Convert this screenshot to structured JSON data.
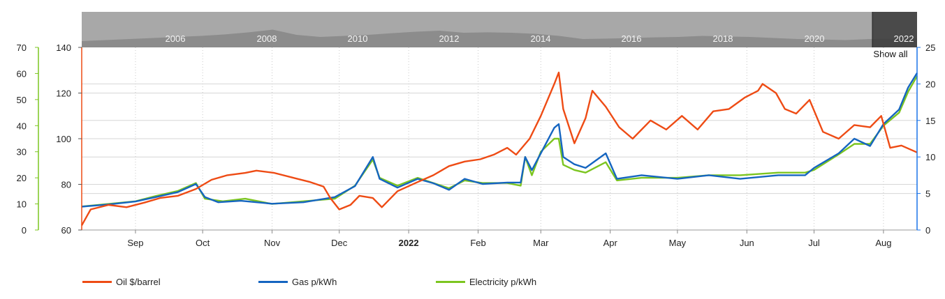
{
  "colors": {
    "oil": "#ee4b14",
    "gas": "#1565c0",
    "electricity": "#7cc520",
    "grid": "#d6d6d6",
    "navigator_bg": "#a8a8a8",
    "navigator_fill": "#8c8c8c"
  },
  "navigator": {
    "years": [
      "2006",
      "2008",
      "2010",
      "2012",
      "2014",
      "2016",
      "2018",
      "2020",
      "2022"
    ],
    "show_all_label": "Show all"
  },
  "chart_data": {
    "type": "line",
    "x_axis": {
      "ticks": [
        {
          "label": "Sep",
          "x": "2021-09-01"
        },
        {
          "label": "Oct",
          "x": "2021-10-01"
        },
        {
          "label": "Nov",
          "x": "2021-11-01"
        },
        {
          "label": "Dec",
          "x": "2021-12-01"
        },
        {
          "label": "2022",
          "x": "2022-01-01",
          "bold": true
        },
        {
          "label": "Feb",
          "x": "2022-02-01"
        },
        {
          "label": "Mar",
          "x": "2022-03-01"
        },
        {
          "label": "Apr",
          "x": "2022-04-01"
        },
        {
          "label": "May",
          "x": "2022-05-01"
        },
        {
          "label": "Jun",
          "x": "2022-06-01"
        },
        {
          "label": "Jul",
          "x": "2022-07-01"
        },
        {
          "label": "Aug",
          "x": "2022-08-01"
        }
      ],
      "range": [
        "2021-08-08",
        "2022-08-16"
      ]
    },
    "y_axes": {
      "oil": {
        "ticks": [
          "60",
          "80",
          "100",
          "120",
          "140"
        ],
        "range": [
          60,
          140
        ]
      },
      "electricity": {
        "ticks": [
          "0",
          "10",
          "20",
          "30",
          "40",
          "50",
          "60",
          "70"
        ],
        "range": [
          0,
          70
        ]
      },
      "gas": {
        "ticks": [
          "0",
          "5",
          "10",
          "15",
          "20",
          "25"
        ],
        "range": [
          0,
          25
        ]
      }
    },
    "grid": true,
    "series": [
      {
        "name": "Oil $/barrel",
        "key": "oil",
        "axis": "oil",
        "points": [
          [
            "2021-08-08",
            62
          ],
          [
            "2021-08-12",
            69
          ],
          [
            "2021-08-20",
            71
          ],
          [
            "2021-08-28",
            70
          ],
          [
            "2021-09-05",
            72
          ],
          [
            "2021-09-12",
            74
          ],
          [
            "2021-09-20",
            75
          ],
          [
            "2021-09-28",
            78
          ],
          [
            "2021-10-05",
            82
          ],
          [
            "2021-10-12",
            84
          ],
          [
            "2021-10-20",
            85
          ],
          [
            "2021-10-25",
            86
          ],
          [
            "2021-11-02",
            85
          ],
          [
            "2021-11-10",
            83
          ],
          [
            "2021-11-18",
            81
          ],
          [
            "2021-11-24",
            79
          ],
          [
            "2021-11-27",
            74
          ],
          [
            "2021-12-01",
            69
          ],
          [
            "2021-12-06",
            71
          ],
          [
            "2021-12-10",
            75
          ],
          [
            "2021-12-16",
            74
          ],
          [
            "2021-12-20",
            70
          ],
          [
            "2021-12-27",
            77
          ],
          [
            "2022-01-05",
            81
          ],
          [
            "2022-01-12",
            84
          ],
          [
            "2022-01-19",
            88
          ],
          [
            "2022-01-26",
            90
          ],
          [
            "2022-02-02",
            91
          ],
          [
            "2022-02-08",
            93
          ],
          [
            "2022-02-14",
            96
          ],
          [
            "2022-02-18",
            93
          ],
          [
            "2022-02-24",
            100
          ],
          [
            "2022-03-01",
            110
          ],
          [
            "2022-03-07",
            124
          ],
          [
            "2022-03-09",
            129
          ],
          [
            "2022-03-11",
            113
          ],
          [
            "2022-03-16",
            98
          ],
          [
            "2022-03-21",
            109
          ],
          [
            "2022-03-24",
            121
          ],
          [
            "2022-03-30",
            114
          ],
          [
            "2022-04-05",
            105
          ],
          [
            "2022-04-11",
            100
          ],
          [
            "2022-04-19",
            108
          ],
          [
            "2022-04-26",
            104
          ],
          [
            "2022-05-03",
            110
          ],
          [
            "2022-05-10",
            104
          ],
          [
            "2022-05-17",
            112
          ],
          [
            "2022-05-24",
            113
          ],
          [
            "2022-05-31",
            118
          ],
          [
            "2022-06-06",
            121
          ],
          [
            "2022-06-08",
            124
          ],
          [
            "2022-06-14",
            120
          ],
          [
            "2022-06-18",
            113
          ],
          [
            "2022-06-23",
            111
          ],
          [
            "2022-06-29",
            117
          ],
          [
            "2022-07-05",
            103
          ],
          [
            "2022-07-12",
            100
          ],
          [
            "2022-07-19",
            106
          ],
          [
            "2022-07-26",
            105
          ],
          [
            "2022-07-31",
            110
          ],
          [
            "2022-08-04",
            96
          ],
          [
            "2022-08-09",
            97
          ],
          [
            "2022-08-16",
            94
          ]
        ]
      },
      {
        "name": "Gas p/kWh",
        "key": "gas",
        "axis": "gas",
        "points": [
          [
            "2021-08-08",
            3.2
          ],
          [
            "2021-08-20",
            3.5
          ],
          [
            "2021-09-01",
            3.9
          ],
          [
            "2021-09-10",
            4.5
          ],
          [
            "2021-09-20",
            5.2
          ],
          [
            "2021-09-28",
            6.3
          ],
          [
            "2021-10-02",
            4.5
          ],
          [
            "2021-10-08",
            3.8
          ],
          [
            "2021-10-18",
            4.0
          ],
          [
            "2021-11-01",
            3.6
          ],
          [
            "2021-11-15",
            3.8
          ],
          [
            "2021-11-29",
            4.5
          ],
          [
            "2021-12-08",
            6.0
          ],
          [
            "2021-12-16",
            10.0
          ],
          [
            "2021-12-19",
            7.0
          ],
          [
            "2021-12-27",
            5.8
          ],
          [
            "2022-01-05",
            7.0
          ],
          [
            "2022-01-12",
            6.4
          ],
          [
            "2022-01-19",
            5.5
          ],
          [
            "2022-01-26",
            7.0
          ],
          [
            "2022-02-03",
            6.3
          ],
          [
            "2022-02-14",
            6.5
          ],
          [
            "2022-02-20",
            6.5
          ],
          [
            "2022-02-22",
            10.0
          ],
          [
            "2022-02-25",
            8.2
          ],
          [
            "2022-03-01",
            10.5
          ],
          [
            "2022-03-07",
            14.0
          ],
          [
            "2022-03-09",
            14.5
          ],
          [
            "2022-03-11",
            10.0
          ],
          [
            "2022-03-16",
            9.0
          ],
          [
            "2022-03-21",
            8.5
          ],
          [
            "2022-03-30",
            10.5
          ],
          [
            "2022-04-04",
            7.0
          ],
          [
            "2022-04-15",
            7.5
          ],
          [
            "2022-05-01",
            7.0
          ],
          [
            "2022-05-15",
            7.5
          ],
          [
            "2022-05-29",
            7.0
          ],
          [
            "2022-06-15",
            7.5
          ],
          [
            "2022-06-27",
            7.5
          ],
          [
            "2022-07-01",
            8.5
          ],
          [
            "2022-07-12",
            10.5
          ],
          [
            "2022-07-19",
            12.5
          ],
          [
            "2022-07-26",
            11.5
          ],
          [
            "2022-08-01",
            14.5
          ],
          [
            "2022-08-08",
            16.5
          ],
          [
            "2022-08-12",
            19.5
          ],
          [
            "2022-08-16",
            21.5
          ]
        ]
      },
      {
        "name": "Electricity p/kWh",
        "key": "electricity",
        "axis": "electricity",
        "points": [
          [
            "2021-08-08",
            9
          ],
          [
            "2021-08-20",
            10
          ],
          [
            "2021-09-01",
            11
          ],
          [
            "2021-09-10",
            13
          ],
          [
            "2021-09-20",
            15
          ],
          [
            "2021-09-28",
            18
          ],
          [
            "2021-10-02",
            12
          ],
          [
            "2021-10-10",
            11
          ],
          [
            "2021-10-20",
            12
          ],
          [
            "2021-11-01",
            10
          ],
          [
            "2021-11-15",
            11
          ],
          [
            "2021-11-29",
            12
          ],
          [
            "2021-12-08",
            17
          ],
          [
            "2021-12-16",
            27
          ],
          [
            "2021-12-19",
            20
          ],
          [
            "2021-12-27",
            17
          ],
          [
            "2022-01-05",
            20
          ],
          [
            "2022-01-12",
            18
          ],
          [
            "2022-01-19",
            16
          ],
          [
            "2022-01-26",
            19
          ],
          [
            "2022-02-03",
            18
          ],
          [
            "2022-02-14",
            18
          ],
          [
            "2022-02-20",
            17
          ],
          [
            "2022-02-22",
            28
          ],
          [
            "2022-02-25",
            21
          ],
          [
            "2022-03-01",
            30
          ],
          [
            "2022-03-07",
            35
          ],
          [
            "2022-03-09",
            35
          ],
          [
            "2022-03-11",
            25
          ],
          [
            "2022-03-16",
            23
          ],
          [
            "2022-03-21",
            22
          ],
          [
            "2022-03-30",
            26
          ],
          [
            "2022-04-04",
            19
          ],
          [
            "2022-04-15",
            20
          ],
          [
            "2022-05-01",
            20
          ],
          [
            "2022-05-15",
            21
          ],
          [
            "2022-05-29",
            21
          ],
          [
            "2022-06-15",
            22
          ],
          [
            "2022-06-27",
            22
          ],
          [
            "2022-07-01",
            23
          ],
          [
            "2022-07-12",
            29
          ],
          [
            "2022-07-19",
            33
          ],
          [
            "2022-07-26",
            33
          ],
          [
            "2022-08-01",
            40
          ],
          [
            "2022-08-08",
            45
          ],
          [
            "2022-08-12",
            53
          ],
          [
            "2022-08-16",
            59
          ]
        ]
      }
    ],
    "legend": [
      {
        "label": "Oil $/barrel",
        "color_key": "oil"
      },
      {
        "label": "Gas p/kWh",
        "color_key": "gas"
      },
      {
        "label": "Electricity p/kWh",
        "color_key": "electricity"
      }
    ],
    "legend_position": "bottom-left"
  }
}
